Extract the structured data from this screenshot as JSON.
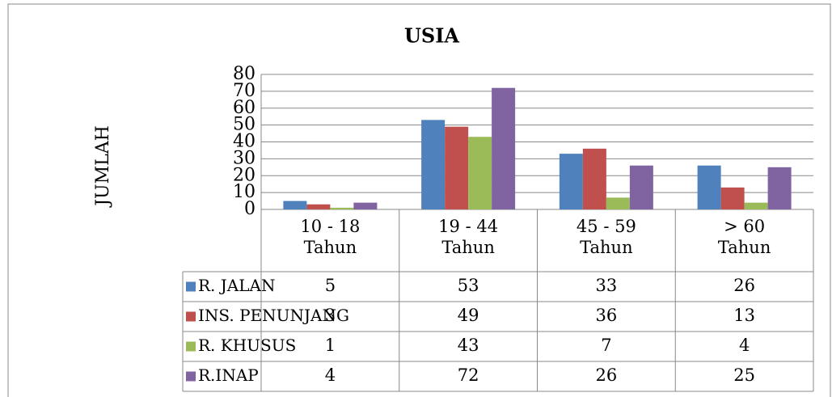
{
  "chart_data": {
    "type": "bar",
    "title": "USIA",
    "y_label": "JUMLAH",
    "categories": [
      "10 - 18 Tahun",
      "19 - 44 Tahun",
      "45 - 59 Tahun",
      "> 60 Tahun"
    ],
    "series": [
      {
        "name": "R. JALAN",
        "color": "#4f81bd",
        "values": [
          5,
          53,
          33,
          26
        ]
      },
      {
        "name": "INS. PENUNJANG",
        "color": "#c0504d",
        "values": [
          3,
          49,
          36,
          13
        ]
      },
      {
        "name": "R. KHUSUS",
        "color": "#9bbb59",
        "values": [
          1,
          43,
          7,
          4
        ]
      },
      {
        "name": "R.INAP",
        "color": "#8064a2",
        "values": [
          4,
          72,
          26,
          25
        ]
      }
    ],
    "ylim": [
      0,
      80
    ],
    "yticks": [
      0,
      10,
      20,
      30,
      40,
      50,
      60,
      70,
      80
    ],
    "grid": true,
    "data_table": true
  }
}
